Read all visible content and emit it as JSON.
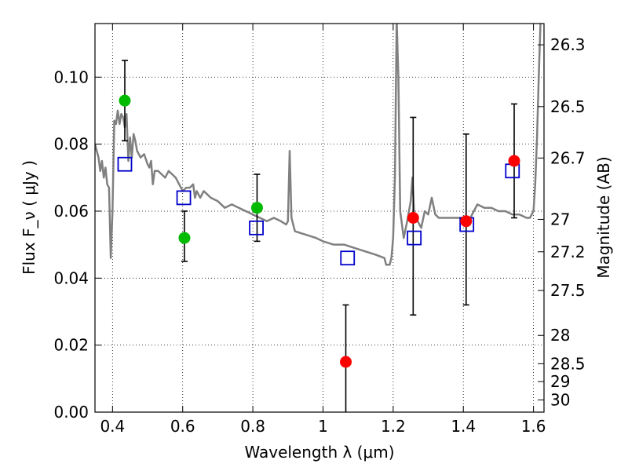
{
  "chart_data": {
    "type": "scatter",
    "xlabel": "Wavelength  λ (μm)",
    "ylabel": "Flux  F_ν  ( μJy )",
    "ylabel_right": "Magnitude (AB)",
    "xlim": [
      0.35,
      1.63
    ],
    "ylim": [
      0.0,
      0.116
    ],
    "grid": true,
    "x_ticks": [
      0.4,
      0.6,
      0.8,
      1.0,
      1.2,
      1.4,
      1.6
    ],
    "x_tick_labels": [
      "0.4",
      "0.6",
      "0.8",
      "1",
      "1.2",
      "1.4",
      "1.6"
    ],
    "y_ticks": [
      0.0,
      0.02,
      0.04,
      0.06,
      0.08,
      0.1
    ],
    "y_tick_labels": [
      "0.00",
      "0.02",
      "0.04",
      "0.06",
      "0.08",
      "0.10"
    ],
    "mag_ticks": [
      26.3,
      26.5,
      26.7,
      27,
      27.2,
      27.5,
      28,
      28.5,
      29,
      30
    ],
    "mag_tick_labels": [
      "26.3",
      "26.5",
      "26.7",
      "27",
      "27.2",
      "27.5",
      "28",
      "28.5",
      "29",
      "30"
    ],
    "colors": {
      "spectrum": "#808080",
      "green_points": "#00bb00",
      "red_points": "#ff0000",
      "model_squares": "#0000cc",
      "errorbar": "#000000"
    },
    "spectrum": [
      [
        0.35,
        0.08
      ],
      [
        0.36,
        0.076
      ],
      [
        0.365,
        0.072
      ],
      [
        0.37,
        0.075
      ],
      [
        0.375,
        0.07
      ],
      [
        0.38,
        0.073
      ],
      [
        0.385,
        0.068
      ],
      [
        0.39,
        0.067
      ],
      [
        0.395,
        0.046
      ],
      [
        0.4,
        0.06
      ],
      [
        0.405,
        0.087
      ],
      [
        0.41,
        0.086
      ],
      [
        0.415,
        0.09
      ],
      [
        0.42,
        0.086
      ],
      [
        0.425,
        0.089
      ],
      [
        0.43,
        0.088
      ],
      [
        0.435,
        0.085
      ],
      [
        0.44,
        0.089
      ],
      [
        0.445,
        0.075
      ],
      [
        0.45,
        0.082
      ],
      [
        0.455,
        0.076
      ],
      [
        0.46,
        0.083
      ],
      [
        0.465,
        0.081
      ],
      [
        0.47,
        0.078
      ],
      [
        0.48,
        0.076
      ],
      [
        0.49,
        0.077
      ],
      [
        0.5,
        0.074
      ],
      [
        0.505,
        0.073
      ],
      [
        0.51,
        0.075
      ],
      [
        0.515,
        0.068
      ],
      [
        0.52,
        0.072
      ],
      [
        0.53,
        0.072
      ],
      [
        0.54,
        0.071
      ],
      [
        0.55,
        0.07
      ],
      [
        0.56,
        0.072
      ],
      [
        0.57,
        0.071
      ],
      [
        0.58,
        0.07
      ],
      [
        0.59,
        0.068
      ],
      [
        0.6,
        0.066
      ],
      [
        0.61,
        0.067
      ],
      [
        0.62,
        0.067
      ],
      [
        0.63,
        0.068
      ],
      [
        0.635,
        0.064
      ],
      [
        0.64,
        0.066
      ],
      [
        0.65,
        0.064
      ],
      [
        0.66,
        0.066
      ],
      [
        0.67,
        0.065
      ],
      [
        0.68,
        0.064
      ],
      [
        0.7,
        0.063
      ],
      [
        0.72,
        0.061
      ],
      [
        0.74,
        0.062
      ],
      [
        0.76,
        0.061
      ],
      [
        0.78,
        0.06
      ],
      [
        0.8,
        0.059
      ],
      [
        0.82,
        0.058
      ],
      [
        0.84,
        0.057
      ],
      [
        0.86,
        0.058
      ],
      [
        0.88,
        0.057
      ],
      [
        0.895,
        0.056
      ],
      [
        0.9,
        0.057
      ],
      [
        0.905,
        0.078
      ],
      [
        0.91,
        0.058
      ],
      [
        0.92,
        0.054
      ],
      [
        0.95,
        0.053
      ],
      [
        0.98,
        0.052
      ],
      [
        1.0,
        0.051
      ],
      [
        1.03,
        0.05
      ],
      [
        1.06,
        0.05
      ],
      [
        1.09,
        0.049
      ],
      [
        1.12,
        0.048
      ],
      [
        1.15,
        0.047
      ],
      [
        1.175,
        0.046
      ],
      [
        1.18,
        0.044
      ],
      [
        1.19,
        0.044
      ],
      [
        1.195,
        0.046
      ],
      [
        1.2,
        0.052
      ],
      [
        1.205,
        0.07
      ],
      [
        1.21,
        0.117
      ],
      [
        1.215,
        0.1
      ],
      [
        1.22,
        0.06
      ],
      [
        1.23,
        0.052
      ],
      [
        1.24,
        0.057
      ],
      [
        1.25,
        0.063
      ],
      [
        1.255,
        0.07
      ],
      [
        1.26,
        0.059
      ],
      [
        1.27,
        0.057
      ],
      [
        1.28,
        0.055
      ],
      [
        1.29,
        0.06
      ],
      [
        1.3,
        0.059
      ],
      [
        1.31,
        0.064
      ],
      [
        1.32,
        0.059
      ],
      [
        1.33,
        0.058
      ],
      [
        1.34,
        0.058
      ],
      [
        1.36,
        0.058
      ],
      [
        1.38,
        0.058
      ],
      [
        1.4,
        0.058
      ],
      [
        1.42,
        0.058
      ],
      [
        1.44,
        0.062
      ],
      [
        1.46,
        0.061
      ],
      [
        1.48,
        0.061
      ],
      [
        1.5,
        0.06
      ],
      [
        1.52,
        0.06
      ],
      [
        1.54,
        0.059
      ],
      [
        1.56,
        0.059
      ],
      [
        1.58,
        0.058
      ],
      [
        1.59,
        0.058
      ],
      [
        1.6,
        0.06
      ],
      [
        1.605,
        0.068
      ],
      [
        1.61,
        0.082
      ],
      [
        1.615,
        0.1
      ],
      [
        1.62,
        0.116
      ]
    ],
    "green_points": [
      {
        "x": 0.435,
        "y": 0.093,
        "err_low": 0.081,
        "err_high": 0.105
      },
      {
        "x": 0.605,
        "y": 0.052,
        "err_low": 0.045,
        "err_high": 0.06
      },
      {
        "x": 0.812,
        "y": 0.061,
        "err_low": 0.051,
        "err_high": 0.071
      }
    ],
    "red_points": [
      {
        "x": 1.065,
        "y": 0.015,
        "err_low": 0.0,
        "err_high": 0.032
      },
      {
        "x": 1.257,
        "y": 0.058,
        "err_low": 0.029,
        "err_high": 0.088
      },
      {
        "x": 1.408,
        "y": 0.057,
        "err_low": 0.032,
        "err_high": 0.083
      },
      {
        "x": 1.545,
        "y": 0.075,
        "err_low": 0.058,
        "err_high": 0.092
      }
    ],
    "model_squares": [
      {
        "x": 0.435,
        "y": 0.074
      },
      {
        "x": 0.603,
        "y": 0.064
      },
      {
        "x": 0.81,
        "y": 0.055
      },
      {
        "x": 1.07,
        "y": 0.046
      },
      {
        "x": 1.26,
        "y": 0.052
      },
      {
        "x": 1.41,
        "y": 0.056
      },
      {
        "x": 1.54,
        "y": 0.072
      }
    ]
  }
}
